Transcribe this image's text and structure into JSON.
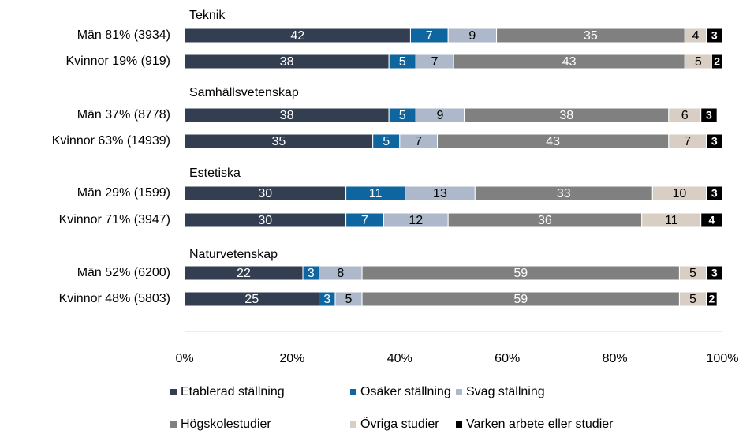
{
  "chart_data": {
    "type": "stacked-barh",
    "group_labels": [
      "Teknik",
      "Samhällsvetenskap",
      "Estetiska",
      "Naturvetenskap"
    ],
    "categories": [
      "Män  81% (3934)",
      "Kvinnor  19% (919)",
      "Män  37% (8778)",
      "Kvinnor  63% (14939)",
      "Män  29% (1599)",
      "Kvinnor  71% (3947)",
      "Män  52% (6200)",
      "Kvinnor  48% (5803)"
    ],
    "series": [
      {
        "name": "Etablerad ställning",
        "color": "#333f50",
        "label_color": "#ffffff",
        "values": [
          42,
          38,
          38,
          35,
          30,
          30,
          22,
          25
        ]
      },
      {
        "name": "Osäker ställning",
        "color": "#0e65a0",
        "label_color": "#ffffff",
        "values": [
          7,
          5,
          5,
          5,
          11,
          7,
          3,
          3
        ]
      },
      {
        "name": "Svag ställning",
        "color": "#adb9ca",
        "label_color": "#000000",
        "values": [
          9,
          7,
          9,
          7,
          13,
          12,
          8,
          5
        ]
      },
      {
        "name": "Högskolestudier",
        "color": "#808080",
        "label_color": "#ffffff",
        "values": [
          35,
          43,
          38,
          43,
          33,
          36,
          59,
          59
        ]
      },
      {
        "name": "Övriga studier",
        "color": "#d9cec3",
        "label_color": "#000000",
        "values": [
          4,
          5,
          6,
          7,
          10,
          11,
          5,
          5
        ]
      },
      {
        "name": "Varken arbete eller studier",
        "color": "#000000",
        "label_color": "#ffffff",
        "values": [
          3,
          2,
          3,
          3,
          3,
          4,
          3,
          2
        ]
      }
    ],
    "xlim": [
      0,
      100
    ],
    "xticks": [
      {
        "value": 0,
        "label": "0%"
      },
      {
        "value": 20,
        "label": "20%"
      },
      {
        "value": 40,
        "label": "40%"
      },
      {
        "value": 60,
        "label": "60%"
      },
      {
        "value": 80,
        "label": "80%"
      },
      {
        "value": 100,
        "label": "100%"
      }
    ]
  }
}
